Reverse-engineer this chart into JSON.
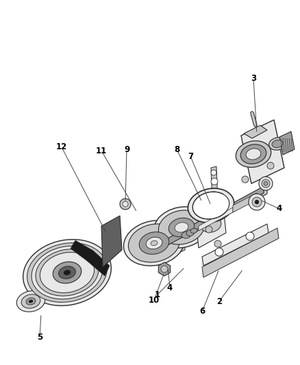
{
  "bg_color": "#ffffff",
  "fig_width": 4.38,
  "fig_height": 5.33,
  "dpi": 100,
  "line_color": "#2a2a2a",
  "label_fontsize": 8.5,
  "label_fontweight": "bold",
  "gray_light": "#e8e8e8",
  "gray_mid": "#c8c8c8",
  "gray_dark": "#a0a0a0",
  "gray_vdark": "#606060",
  "black": "#1a1a1a"
}
